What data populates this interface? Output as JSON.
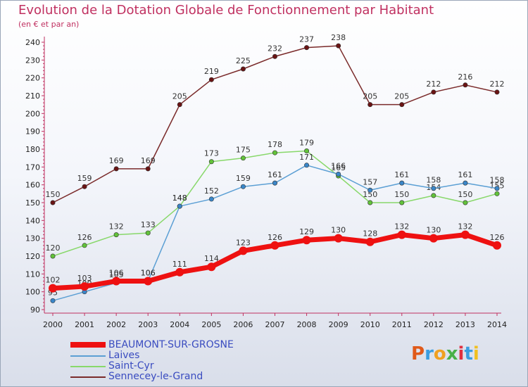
{
  "title": "Evolution de la Dotation Globale de Fonctionnement par Habitant",
  "subtitle": "(en € et par an)",
  "logo": {
    "text": "Proxiti",
    "letters": [
      "P",
      "r",
      "o",
      "x",
      "i",
      "t",
      "i"
    ],
    "colors": [
      "#e05a1a",
      "#3a9de0",
      "#f0a020",
      "#49b048",
      "#e03040",
      "#3a9de0",
      "#f0c020"
    ]
  },
  "chart_data": {
    "type": "line",
    "x": [
      "2000",
      "2001",
      "2002",
      "2003",
      "2004",
      "2005",
      "2006",
      "2007",
      "2008",
      "2009",
      "2010",
      "2011",
      "2012",
      "2013",
      "2014"
    ],
    "ylim": [
      90,
      240
    ],
    "yticks": [
      90,
      100,
      110,
      120,
      130,
      140,
      150,
      160,
      170,
      180,
      190,
      200,
      210,
      220,
      230,
      240
    ],
    "grid": false,
    "legend": "bottom-left",
    "series": [
      {
        "name": "Sennecey-le-Grand",
        "color": "#7a2a2a",
        "marker": "#6a1414",
        "width": 1.5,
        "values": [
          150,
          159,
          169,
          169,
          205,
          219,
          225,
          232,
          237,
          238,
          205,
          205,
          212,
          216,
          212
        ],
        "labels": [
          "150",
          "159",
          "169",
          "169",
          "205",
          "219",
          "225",
          "232",
          "237",
          "238",
          "205",
          "205",
          "212",
          "216",
          "212"
        ]
      },
      {
        "name": "Saint-Cyr",
        "color": "#88d86a",
        "marker": "#62c23a",
        "width": 1.5,
        "values": [
          120,
          126,
          132,
          133,
          148,
          173,
          175,
          178,
          179,
          165,
          150,
          150,
          154,
          150,
          155
        ],
        "labels": [
          "120",
          "126",
          "132",
          "133",
          "148",
          "173",
          "175",
          "178",
          "179",
          "165",
          "150",
          "150",
          "154",
          "150",
          "155"
        ]
      },
      {
        "name": "Laives",
        "color": "#5b9fd4",
        "marker": "#3a86c8",
        "width": 1.5,
        "values": [
          95,
          100,
          105,
          106,
          148,
          152,
          159,
          161,
          171,
          166,
          157,
          161,
          158,
          161,
          158
        ],
        "labels": [
          "95",
          "100",
          "105",
          "106",
          "148",
          "152",
          "159",
          "161",
          "171",
          "166",
          "157",
          "161",
          "158",
          "161",
          "158"
        ]
      },
      {
        "name": "BEAUMONT-SUR-GROSNE",
        "color": "#ee1111",
        "marker": "#ee1111",
        "width": 7,
        "values": [
          102,
          103,
          106,
          106,
          111,
          114,
          123,
          126,
          129,
          130,
          128,
          132,
          130,
          132,
          126
        ],
        "labels": [
          "102",
          "103",
          "106",
          "106",
          "111",
          "114",
          "123",
          "126",
          "129",
          "130",
          "128",
          "132",
          "130",
          "132",
          "126"
        ]
      }
    ]
  }
}
